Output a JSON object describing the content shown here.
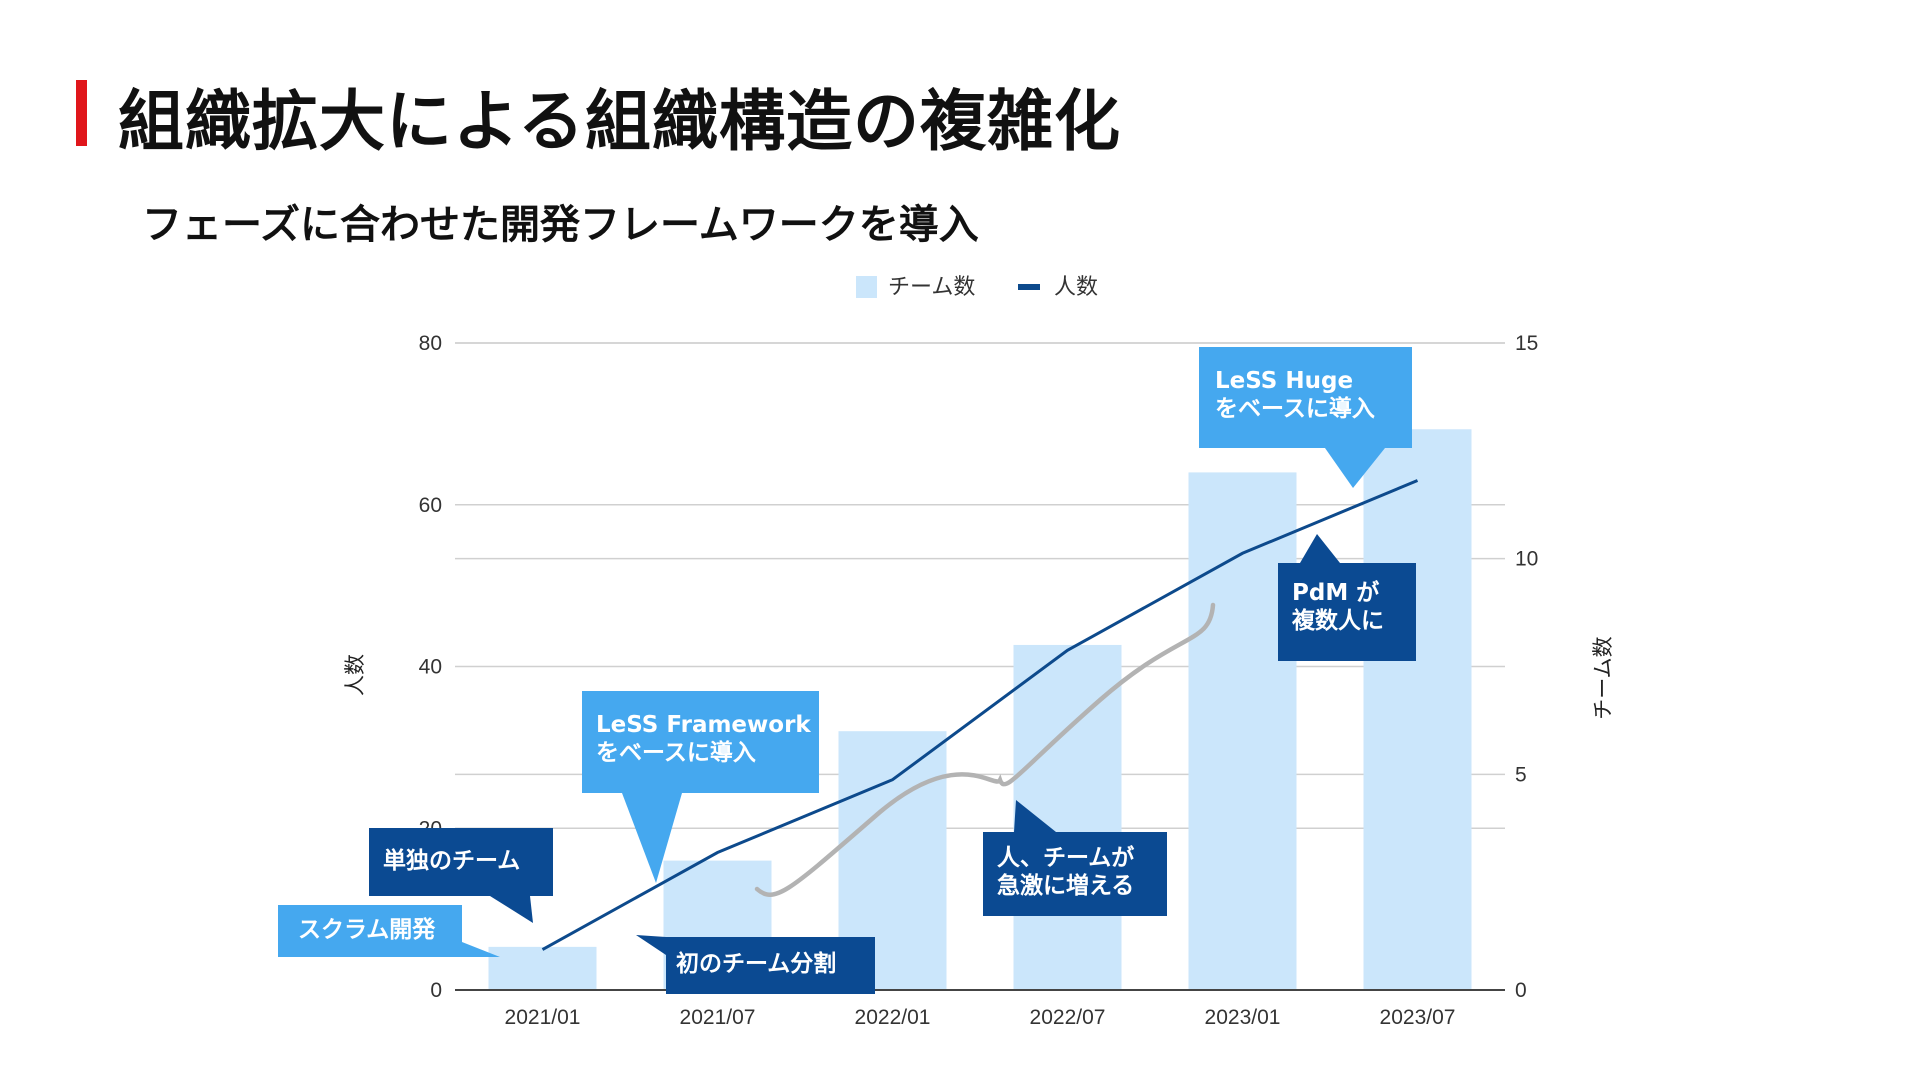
{
  "title": "組織拡大による組織構造の複雑化",
  "subtitle": "フェーズに合わせた開発フレームワークを導入",
  "colors": {
    "accent": "#e0161b",
    "bar": "#cbe6fb",
    "line": "#0d4a8c",
    "callout_light": "#45a8ef",
    "callout_dark": "#0b4a92",
    "brace": "#b3b3b3"
  },
  "callouts": {
    "scrum": "スクラム開発",
    "solo_team": "単独のチーム",
    "first_split": "初のチーム分割",
    "less_line1": "LeSS Framework",
    "less_line2": "をベースに導入",
    "rapid_line1": "人、チームが",
    "rapid_line2": "急激に増える",
    "pdm_line1": "PdM が",
    "pdm_line2": "複数人に",
    "huge_line1": "LeSS Huge",
    "huge_line2": "をベースに導入"
  },
  "chart_data": {
    "type": "bar",
    "categories": [
      "2021/01",
      "2021/07",
      "2022/01",
      "2022/07",
      "2023/01",
      "2023/07"
    ],
    "series": [
      {
        "name": "チーム数",
        "type": "bar",
        "axis": "right",
        "values": [
          1,
          3,
          6,
          8,
          12,
          13
        ]
      },
      {
        "name": "人数",
        "type": "line",
        "axis": "left",
        "values": [
          5,
          17,
          26,
          42,
          54,
          63
        ]
      }
    ],
    "ylabel": "人数",
    "y2label": "チーム数",
    "ylim": [
      0,
      80
    ],
    "y2lim": [
      0,
      15
    ],
    "yticks": [
      0,
      20,
      40,
      60,
      80
    ],
    "y2ticks": [
      0,
      5,
      10,
      15
    ],
    "legend_position": "top-center",
    "grid": true
  }
}
